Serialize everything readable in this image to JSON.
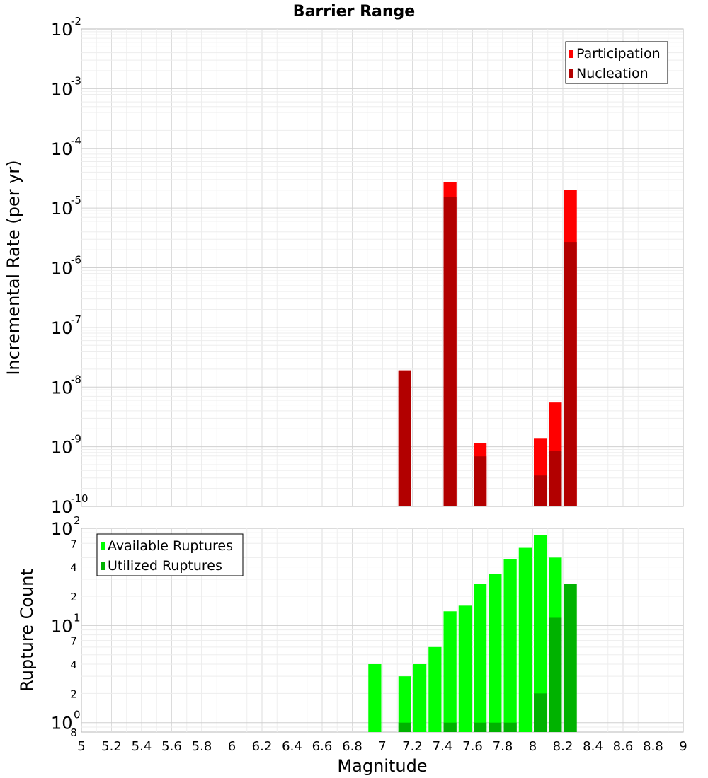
{
  "chart_data": [
    {
      "type": "bar",
      "title": "Barrier Range",
      "xlabel": "",
      "ylabel": "Incremental Rate (per yr)",
      "yscale": "log",
      "ylim": [
        1e-10,
        0.01
      ],
      "xlim": [
        5,
        9
      ],
      "legend_position": "top-right",
      "y_tick_mantissa": "10",
      "y_tick_exponents": [
        "-2",
        "-3",
        "-4",
        "-5",
        "-6",
        "-7",
        "-8",
        "-9",
        "-10"
      ],
      "bin_width": 0.1,
      "grid": true,
      "series": [
        {
          "name": "Participation",
          "color": "#ff0000",
          "x": [
            7.15,
            7.45,
            7.65,
            8.05,
            8.15,
            8.25
          ],
          "values": [
            1.9e-08,
            2.7e-05,
            1.15e-09,
            1.4e-09,
            5.5e-09,
            2e-05
          ]
        },
        {
          "name": "Nucleation",
          "color": "#b20000",
          "x": [
            7.15,
            7.45,
            7.65,
            8.05,
            8.25,
            8.15
          ],
          "values": [
            1.9e-08,
            1.55e-05,
            6.9e-10,
            3.3e-10,
            2.7e-06,
            8.5e-10
          ]
        }
      ]
    },
    {
      "type": "bar",
      "title": "",
      "xlabel": "Magnitude",
      "ylabel": "Rupture Count",
      "yscale": "log",
      "ylim": [
        0.8,
        100
      ],
      "xlim": [
        5,
        9
      ],
      "legend_position": "top-left",
      "x_ticks": [
        "5",
        "5.2",
        "5.4",
        "5.6",
        "5.8",
        "6",
        "6.2",
        "6.4",
        "6.6",
        "6.8",
        "7",
        "7.2",
        "7.4",
        "7.6",
        "7.8",
        "8",
        "8.2",
        "8.4",
        "8.6",
        "8.8",
        "9"
      ],
      "y_major_ticks": [
        {
          "mantissa": "10",
          "exponent": "2",
          "value": 100
        },
        {
          "mantissa": "10",
          "exponent": "1",
          "value": 10
        },
        {
          "mantissa": "10",
          "exponent": "0",
          "value": 1
        }
      ],
      "y_minor_ticks": [
        {
          "label": "7",
          "value": 70
        },
        {
          "label": "4",
          "value": 40
        },
        {
          "label": "2",
          "value": 20
        },
        {
          "label": "7",
          "value": 7
        },
        {
          "label": "4",
          "value": 4
        },
        {
          "label": "2",
          "value": 2
        },
        {
          "label": "8",
          "value": 0.8
        }
      ],
      "bin_width": 0.1,
      "grid": true,
      "series": [
        {
          "name": "Available Ruptures",
          "color": "#00ff00",
          "x": [
            6.95,
            7.15,
            7.25,
            7.35,
            7.45,
            7.55,
            7.65,
            7.75,
            7.85,
            7.95,
            8.05,
            8.15
          ],
          "values": [
            4,
            3,
            4,
            6,
            14,
            16,
            27,
            34,
            48,
            63,
            85,
            50
          ]
        },
        {
          "name": "Utilized Ruptures",
          "color": "#00b200",
          "x": [
            7.15,
            7.45,
            7.65,
            7.75,
            7.85,
            8.05,
            8.15,
            8.25
          ],
          "values": [
            1,
            1,
            1,
            1,
            1,
            2,
            12,
            27
          ]
        }
      ]
    }
  ]
}
